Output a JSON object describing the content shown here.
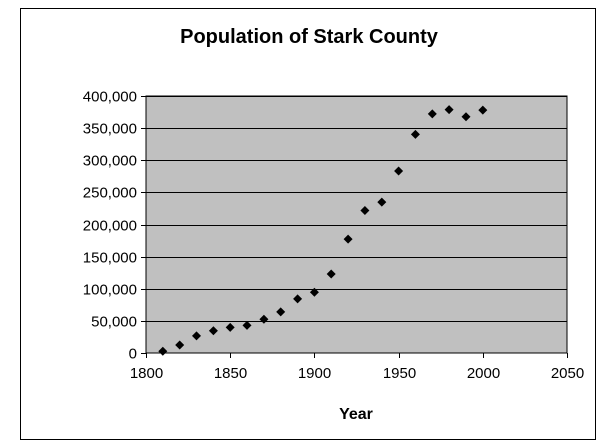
{
  "chart_data": {
    "type": "scatter",
    "title": "Population of Stark County",
    "xlabel": "Year",
    "ylabel": "",
    "xlim": [
      1800,
      2050
    ],
    "ylim": [
      0,
      400000
    ],
    "xticks": [
      1800,
      1850,
      1900,
      1950,
      2000,
      2050
    ],
    "xtick_labels": [
      "1800",
      "1850",
      "1900",
      "1950",
      "2000",
      "2050"
    ],
    "yticks": [
      0,
      50000,
      100000,
      150000,
      200000,
      250000,
      300000,
      350000,
      400000
    ],
    "ytick_labels": [
      "0",
      "50,000",
      "100,000",
      "150,000",
      "200,000",
      "250,000",
      "300,000",
      "350,000",
      "400,000"
    ],
    "grid": "horizontal",
    "legend": "none",
    "plot_background": "#c0c0c0",
    "marker_color": "#000000",
    "marker": "diamond",
    "x": [
      1810,
      1820,
      1830,
      1840,
      1850,
      1860,
      1870,
      1880,
      1890,
      1900,
      1910,
      1920,
      1930,
      1940,
      1950,
      1960,
      1970,
      1980,
      1990,
      2000
    ],
    "y": [
      2700,
      12400,
      26600,
      34600,
      39900,
      42900,
      52500,
      64000,
      84200,
      94700,
      122900,
      177200,
      221800,
      234900,
      283200,
      340300,
      372200,
      378800,
      367600,
      378100
    ]
  }
}
